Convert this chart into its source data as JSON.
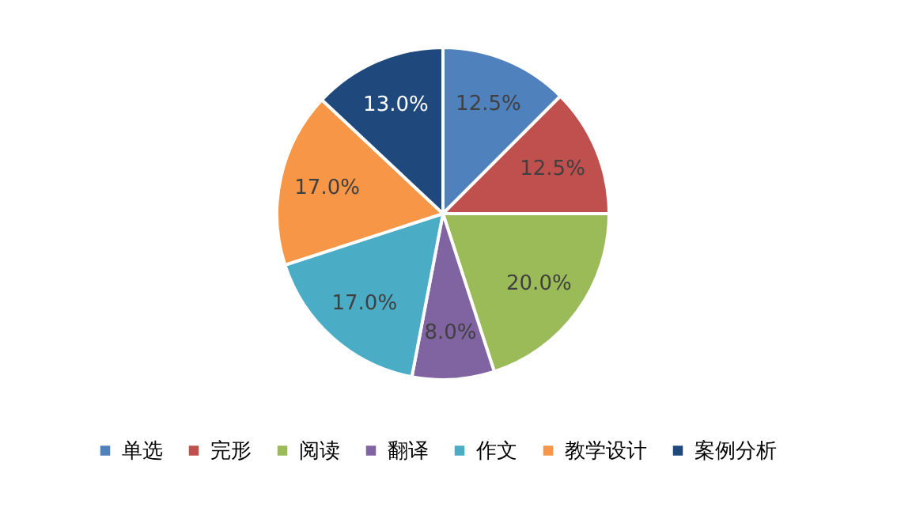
{
  "chart_data": {
    "type": "pie",
    "categories": [
      "单选",
      "完形",
      "阅读",
      "翻译",
      "作文",
      "教学设计",
      "案例分析"
    ],
    "values": [
      12.5,
      12.5,
      20.0,
      8.0,
      17.0,
      17.0,
      13.0
    ],
    "value_labels": [
      "12.5%",
      "12.5%",
      "20.0%",
      "8.0%",
      "17.0%",
      "17.0%",
      "13.0%"
    ],
    "colors": [
      "#4f81bd",
      "#c0504d",
      "#9bbb59",
      "#8064a2",
      "#4bacc6",
      "#f79646",
      "#1f497d"
    ],
    "legend": "bottom"
  }
}
